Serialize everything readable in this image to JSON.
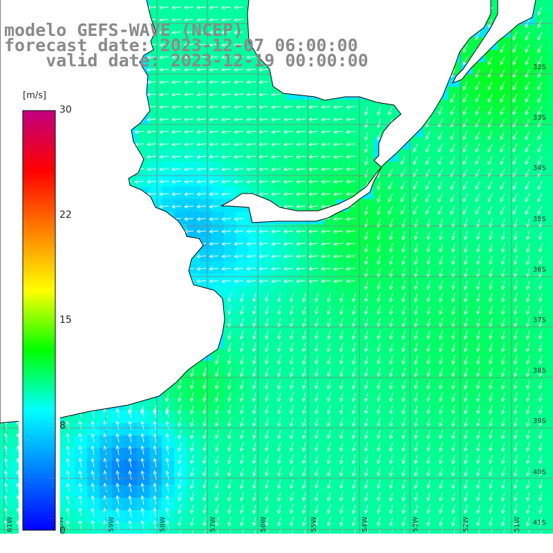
{
  "title": {
    "line1": "modelo GEFS-WAVE (NCEP)",
    "line2": "forecast date: 2023-12-07 06:00:00",
    "line3": "    valid date: 2023-12-19 00:00:00"
  },
  "colorbar": {
    "unit": "[m/s]",
    "ticks": [
      {
        "label": "30",
        "value": 30
      },
      {
        "label": "22",
        "value": 22
      },
      {
        "label": "15",
        "value": 15
      },
      {
        "label": "8",
        "value": 8
      },
      {
        "label": "0",
        "value": 0
      }
    ],
    "colors": [
      "#0000ff",
      "#0080ff",
      "#00ffff",
      "#00ff00",
      "#ffff00",
      "#ff8000",
      "#ff0000",
      "#c0007f"
    ]
  },
  "map": {
    "lat_labels": [
      "32S",
      "33S",
      "34S",
      "35S",
      "36S",
      "37S",
      "38S",
      "39S",
      "40S",
      "41S"
    ],
    "lon_labels": [
      "61W",
      "60W",
      "59W",
      "58W",
      "57W",
      "56W",
      "55W",
      "54W",
      "53W",
      "52W",
      "51W"
    ],
    "water_color": "#00e8f8",
    "land_color": "#ffffff",
    "coast_color": "#000000",
    "grid_color": "#808080",
    "arrow_color": "#ffffff"
  }
}
